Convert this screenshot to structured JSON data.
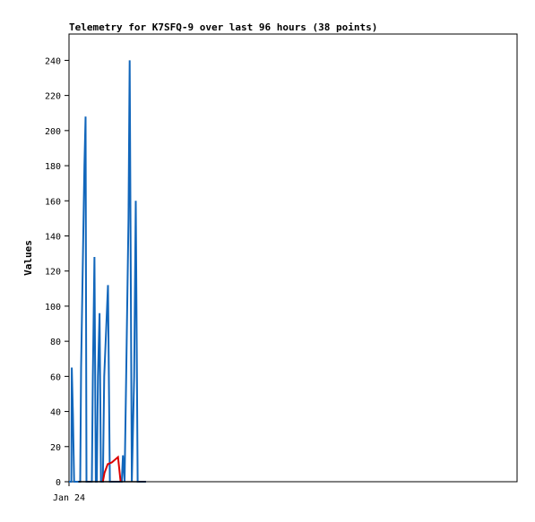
{
  "chart_data": {
    "type": "line",
    "title": "Telemetry for K7SFQ-9 over last 96 hours (38 points)",
    "xlabel": "",
    "ylabel": "Values",
    "x_tick_labels": [
      "Jan 24"
    ],
    "y_ticks": [
      0,
      20,
      40,
      60,
      80,
      100,
      120,
      140,
      160,
      180,
      200,
      220,
      240
    ],
    "ylim": [
      0,
      255
    ],
    "grid": false,
    "colors": {
      "series_a": "#1166bb",
      "series_b": "#dd0000",
      "series_c": "#000000"
    },
    "series": [
      {
        "points": [
          [
            0.0,
            0
          ],
          [
            0.2,
            0
          ],
          [
            0.35,
            0
          ],
          [
            0.5,
            0
          ],
          [
            0.6,
            65
          ],
          [
            0.85,
            38
          ],
          [
            1.1,
            0
          ],
          [
            2.4,
            0
          ],
          [
            2.6,
            65
          ],
          [
            3.3,
            180
          ],
          [
            3.55,
            208
          ],
          [
            3.75,
            0
          ],
          [
            4.9,
            0
          ],
          [
            5.1,
            60
          ],
          [
            5.45,
            128
          ],
          [
            5.75,
            0
          ],
          [
            5.95,
            0
          ],
          [
            6.2,
            60
          ],
          [
            6.55,
            96
          ],
          [
            6.85,
            0
          ],
          [
            7.25,
            0
          ],
          [
            7.55,
            60
          ],
          [
            8.35,
            112
          ],
          [
            8.75,
            0
          ],
          [
            11.3,
            0
          ],
          [
            11.55,
            15
          ],
          [
            11.9,
            0
          ],
          [
            12.25,
            60
          ],
          [
            12.75,
            150
          ],
          [
            13.0,
            240
          ],
          [
            13.45,
            0
          ],
          [
            13.95,
            60
          ],
          [
            14.3,
            160
          ],
          [
            14.7,
            0
          ],
          [
            15.0,
            0
          ],
          [
            15.5,
            0
          ],
          [
            16.0,
            0
          ],
          [
            16.5,
            0
          ]
        ]
      },
      {
        "points": [
          [
            7.25,
            0
          ],
          [
            7.6,
            5
          ],
          [
            8.3,
            10
          ],
          [
            9.2,
            11
          ],
          [
            10.5,
            14
          ],
          [
            11.05,
            0
          ]
        ]
      },
      {
        "points": [
          [
            2.0,
            0
          ],
          [
            4.0,
            0
          ],
          [
            6.0,
            0
          ],
          [
            8.0,
            0
          ],
          [
            10.0,
            0
          ],
          [
            12.0,
            0
          ],
          [
            14.0,
            0
          ],
          [
            16.5,
            0
          ]
        ]
      }
    ]
  }
}
